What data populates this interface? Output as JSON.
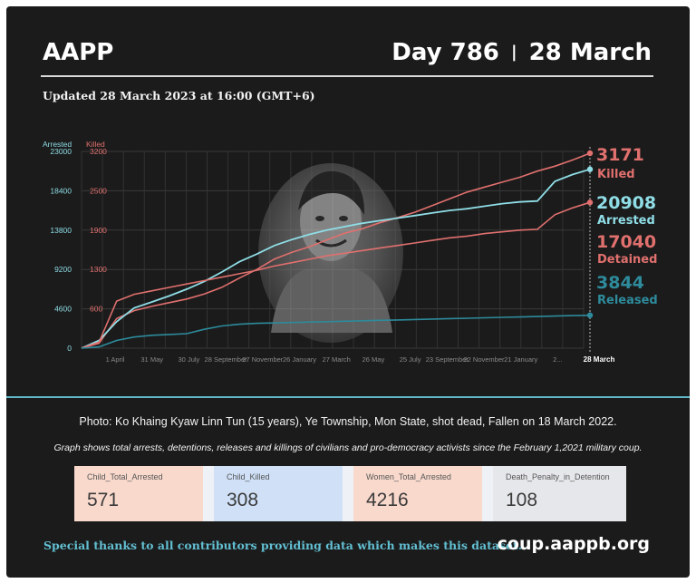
{
  "header": {
    "org": "AAPP",
    "day_label": "Day 786",
    "separator": "|",
    "date_label": "28 March"
  },
  "updated": "Updated 28 March 2023 at 16:00 (GMT+6)",
  "colors": {
    "background": "#1b1b1b",
    "killed": "#e0706e",
    "arrested": "#8fdde6",
    "detained": "#e0706e",
    "released": "#2d8b9c",
    "divider": "#5fb7c9"
  },
  "chart_data": {
    "type": "line",
    "left_axis": {
      "title": "Arrested",
      "ticks": [
        0,
        4600,
        9200,
        13800,
        18400,
        23000
      ],
      "tick_labels": [
        "0",
        "4600",
        "9200",
        "13800",
        "18400",
        "23000"
      ],
      "range": [
        0,
        23000
      ]
    },
    "right_axis": {
      "title": "Killed",
      "ticks": [
        0,
        600,
        1300,
        1900,
        2500,
        3200
      ],
      "tick_labels": [
        "",
        "600",
        "1300",
        "1900",
        "2500",
        "3200"
      ],
      "range": [
        0,
        3200
      ]
    },
    "x_labels": [
      "1 April",
      "31 May",
      "30 July",
      "28 September",
      "27 November",
      "26 January",
      "27 March",
      "26 May",
      "25 July",
      "23 September",
      "22 November",
      "21 January",
      "2...",
      "28 March"
    ],
    "highlight_x_label": "28 March",
    "series": [
      {
        "name": "Killed",
        "axis": "right",
        "final_value": 3171,
        "end_label": "3171",
        "label": "Killed",
        "values": [
          0,
          80,
          480,
          610,
          680,
          740,
          800,
          880,
          990,
          1140,
          1280,
          1450,
          1560,
          1650,
          1760,
          1870,
          1940,
          2040,
          2120,
          2210,
          2320,
          2430,
          2540,
          2620,
          2700,
          2780,
          2880,
          2960,
          3060,
          3171
        ]
      },
      {
        "name": "Arrested",
        "axis": "left",
        "final_value": 20908,
        "end_label": "20908",
        "label": "Arrested",
        "values": [
          0,
          900,
          3100,
          4700,
          5400,
          6100,
          6900,
          7800,
          8900,
          10100,
          11000,
          12000,
          12700,
          13300,
          13800,
          14200,
          14600,
          14900,
          15200,
          15500,
          15800,
          16100,
          16300,
          16600,
          16900,
          17100,
          17200,
          19500,
          20300,
          20908
        ]
      },
      {
        "name": "Detained",
        "axis": "left",
        "final_value": 17040,
        "end_label": "17040",
        "label": "Detained",
        "values": [
          0,
          700,
          5500,
          6300,
          6700,
          7100,
          7500,
          7900,
          8300,
          8700,
          9100,
          9600,
          10000,
          10400,
          10800,
          11100,
          11400,
          11700,
          12000,
          12300,
          12600,
          12900,
          13100,
          13400,
          13600,
          13800,
          13900,
          15600,
          16400,
          17040
        ]
      },
      {
        "name": "Released",
        "axis": "left",
        "final_value": 3844,
        "end_label": "3844",
        "label": "Released",
        "values": [
          0,
          150,
          900,
          1300,
          1500,
          1600,
          1700,
          2200,
          2600,
          2800,
          2900,
          2950,
          3000,
          3050,
          3100,
          3150,
          3200,
          3250,
          3300,
          3350,
          3400,
          3450,
          3500,
          3550,
          3600,
          3650,
          3700,
          3750,
          3800,
          3844
        ]
      }
    ]
  },
  "photo_caption": "Photo: Ko Khaing Kyaw Linn Tun (15 years), Ye Township, Mon State,  shot dead, Fallen on 18 March 2022.",
  "graph_note": "Graph shows total arrests, detentions, releases and killings of civilians and pro-democracy activists since the February 1,2021 military coup.",
  "stats": [
    {
      "label": "Child_Total_Arrested",
      "value": "571",
      "color": "#f9d9cc"
    },
    {
      "label": "Child_Killed",
      "value": "308",
      "color": "#cfe0f7"
    },
    {
      "label": "Women_Total_Arrested",
      "value": "4216",
      "color": "#f9d9cc"
    },
    {
      "label": "Death_Penalty_in_Detention",
      "value": "108",
      "color": "#e6e7ea"
    }
  ],
  "footer": {
    "thanks": "Special thanks to all contributors providing data which makes this dataset.",
    "site": "coup.aappb.org"
  }
}
